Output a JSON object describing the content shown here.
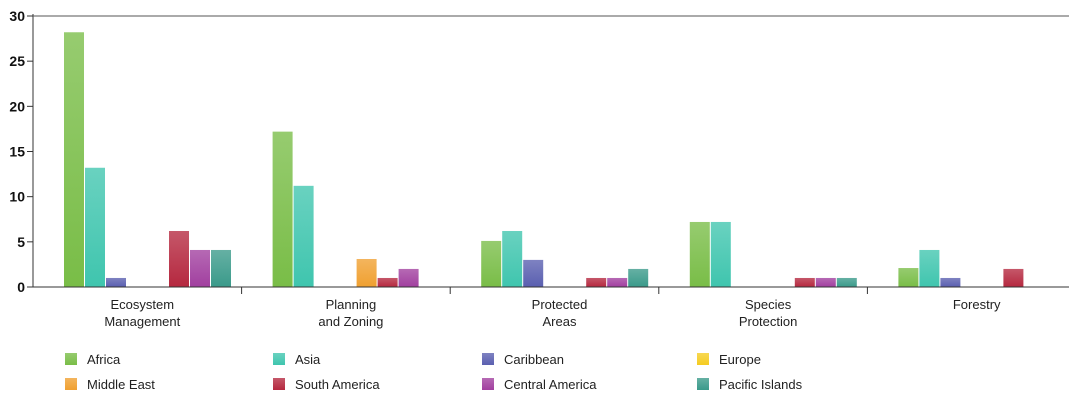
{
  "chart_data": {
    "type": "bar",
    "categories": [
      [
        "Ecosystem",
        "Management"
      ],
      [
        "Planning",
        "and Zoning"
      ],
      [
        "Protected",
        "Areas"
      ],
      [
        "Species",
        "Protection"
      ],
      [
        "Forestry"
      ]
    ],
    "ylim": [
      0,
      30
    ],
    "yticks": [
      0,
      5,
      10,
      15,
      20,
      25,
      30
    ],
    "grid": false,
    "legend_position": "bottom",
    "series": [
      {
        "name": "Africa",
        "color": "#79bd47",
        "values": [
          28.2,
          17.2,
          5.1,
          7.2,
          2.1
        ]
      },
      {
        "name": "Asia",
        "color": "#3fc5ae",
        "values": [
          13.2,
          11.2,
          6.2,
          7.2,
          4.1
        ]
      },
      {
        "name": "Caribbean",
        "color": "#5a5fb0",
        "values": [
          1.0,
          0,
          3.0,
          0,
          1.0
        ]
      },
      {
        "name": "Europe",
        "color": "#f5cc21",
        "values": [
          0,
          0,
          0,
          0,
          0
        ]
      },
      {
        "name": "Middle East",
        "color": "#f0a030",
        "values": [
          0,
          3.1,
          0,
          0,
          0
        ]
      },
      {
        "name": "South America",
        "color": "#b5283f",
        "values": [
          6.2,
          1.0,
          1.0,
          1.0,
          2.0
        ]
      },
      {
        "name": "Central America",
        "color": "#a13f9f",
        "values": [
          4.1,
          2.0,
          1.0,
          1.0,
          0
        ]
      },
      {
        "name": "Pacific Islands",
        "color": "#3a9a8a",
        "values": [
          4.1,
          0,
          2.0,
          1.0,
          0
        ]
      }
    ]
  }
}
